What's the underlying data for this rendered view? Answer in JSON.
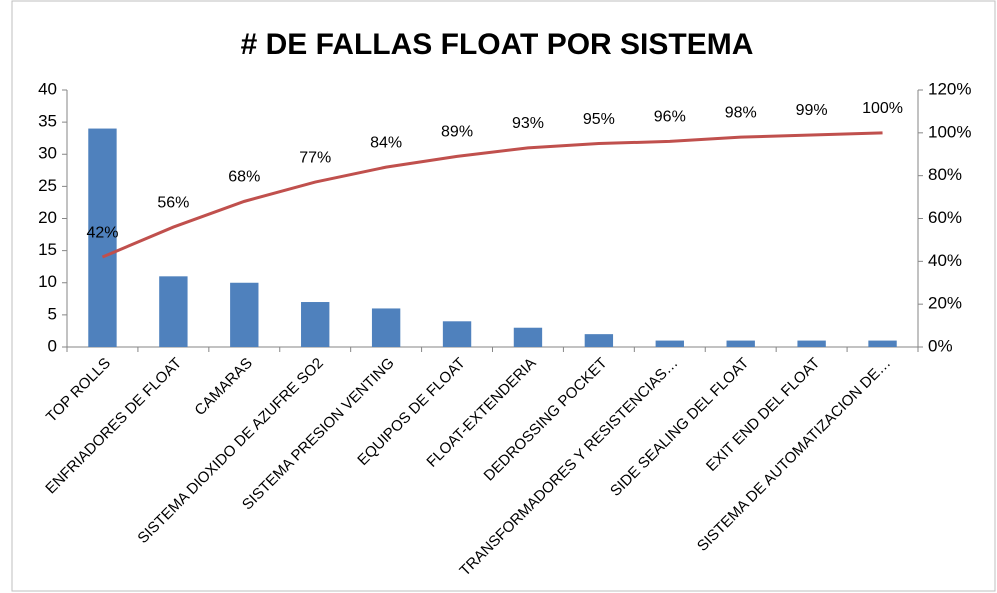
{
  "chart_data": {
    "type": "bar",
    "title": "# DE FALLAS FLOAT POR SISTEMA",
    "categories": [
      "TOP ROLLS",
      "ENFRIADORES DE FLOAT",
      "CAMARAS",
      "SISTEMA DIOXIDO DE AZUFRE SO2",
      "SISTEMA PRESION VENTING",
      "EQUIPOS DE FLOAT",
      "FLOAT-EXTENDERIA",
      "DEDROSSING POCKET",
      "TRANSFORMADORES Y RESISTENCIAS…",
      "SIDE SEALING DEL FLOAT",
      "EXIT END DEL FLOAT",
      "SISTEMA DE AUTOMATIZACION DE…"
    ],
    "series": [
      {
        "type": "bar",
        "color": "#4f81bd",
        "values": [
          34,
          11,
          10,
          7,
          6,
          4,
          3,
          2,
          1,
          1,
          1,
          1
        ]
      },
      {
        "type": "line",
        "axis": "y2",
        "color": "#c0504d",
        "values": [
          42,
          56,
          68,
          77,
          84,
          89,
          93,
          95,
          96,
          98,
          99,
          100
        ],
        "value_labels": [
          "42%",
          "56%",
          "68%",
          "77%",
          "84%",
          "89%",
          "93%",
          "95%",
          "96%",
          "98%",
          "99%",
          "100%"
        ]
      }
    ],
    "ylim": [
      0,
      40
    ],
    "yticks": [
      0,
      5,
      10,
      15,
      20,
      25,
      30,
      35,
      40
    ],
    "y2lim": [
      0,
      120
    ],
    "y2ticks": [
      {
        "value": 0,
        "label": "0%"
      },
      {
        "value": 20,
        "label": "20%"
      },
      {
        "value": 40,
        "label": "40%"
      },
      {
        "value": 60,
        "label": "60%"
      },
      {
        "value": 80,
        "label": "80%"
      },
      {
        "value": 100,
        "label": "100%"
      },
      {
        "value": 120,
        "label": "120%"
      }
    ],
    "grid": false
  }
}
